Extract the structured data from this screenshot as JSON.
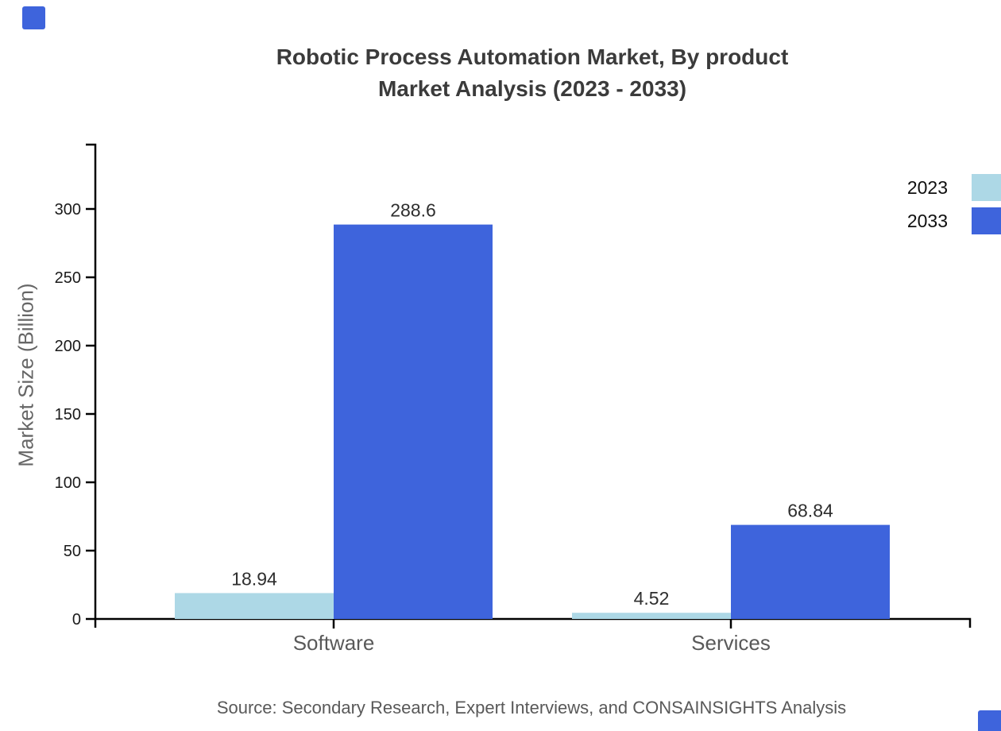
{
  "title": {
    "line1": "Robotic Process Automation Market, By product",
    "line2": "Market Analysis (2023 - 2033)"
  },
  "legend": [
    {
      "label": "2023",
      "color": "#ADD8E6"
    },
    {
      "label": "2033",
      "color": "#3E64DC"
    }
  ],
  "chart_data": {
    "type": "bar",
    "categories": [
      "Software",
      "Services"
    ],
    "series": [
      {
        "name": "2023",
        "color": "#ADD8E6",
        "values": [
          18.94,
          4.52
        ]
      },
      {
        "name": "2033",
        "color": "#3E64DC",
        "values": [
          288.6,
          68.84
        ]
      }
    ],
    "title": "Robotic Process Automation Market, By product Market Analysis (2023 - 2033)",
    "xlabel": "",
    "ylabel": "Market Size (Billion)",
    "ylim": [
      0,
      300
    ],
    "yticks": [
      0,
      50,
      100,
      150,
      200,
      250,
      300
    ],
    "grid": false,
    "legend_position": "right-top",
    "value_labels_shown": true
  },
  "source": "Source: Secondary Research, Expert Interviews, and CONSAINSIGHTS Analysis",
  "colors": {
    "background": "#ffffff",
    "axis": "#000000",
    "title_text": "#3b3b3b",
    "tick_label": "#1a1a1a",
    "category_label": "#595959",
    "value_label": "#2e2e2e",
    "y_axis_title": "#666666",
    "source_text": "#595959",
    "legend_text": "#0f0f0f",
    "corner_marker": "#3E64DC"
  }
}
